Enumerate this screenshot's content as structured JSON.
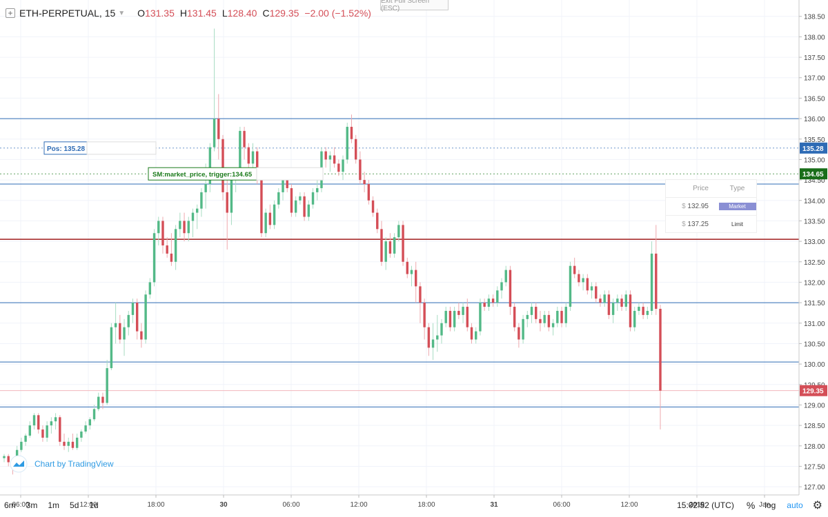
{
  "legend": {
    "symbol": "ETH-PERPETUAL, 15",
    "open_label": "O",
    "open": "131.35",
    "high_label": "H",
    "high": "131.45",
    "low_label": "L",
    "low": "128.40",
    "close_label": "C",
    "close": "129.35",
    "change": "−2.00 (−1.52%)"
  },
  "exit_fullscreen": "Exit Full Screen (ESC)",
  "position_label": "Pos: 135.28",
  "stop_label": "SM:market_price, trigger:134.65",
  "price_badges": {
    "pos": "135.28",
    "trigger": "134.65",
    "last": "129.35"
  },
  "orders": {
    "headers": [
      "Price",
      "Type"
    ],
    "rows": [
      {
        "currency": "$",
        "price": "132.95",
        "type": "Market"
      },
      {
        "currency": "$",
        "price": "137.25",
        "type": "Limit"
      }
    ]
  },
  "watermark": "Chart by TradingView",
  "time_ranges": [
    "6m",
    "3m",
    "1m",
    "5d",
    "1d"
  ],
  "status": {
    "time": "15:02:52 (UTC)",
    "percent": "%",
    "log": "log",
    "auto": "auto"
  },
  "colors": {
    "up": "#53b987",
    "down": "#d44e57",
    "hline_blue": "#2e6bb5",
    "hline_red": "#a01c1c",
    "accent": "#2196f3"
  },
  "chart_data": {
    "type": "candlestick",
    "symbol": "ETH-PERPETUAL",
    "interval": "15",
    "ylim": [
      126.8,
      138.9
    ],
    "y_ticks": [
      "127.00",
      "127.50",
      "128.00",
      "128.50",
      "129.00",
      "129.50",
      "130.00",
      "130.50",
      "131.00",
      "131.50",
      "132.00",
      "132.50",
      "133.00",
      "133.50",
      "134.00",
      "134.50",
      "135.00",
      "135.50",
      "136.00",
      "136.50",
      "137.00",
      "137.50",
      "138.00",
      "138.50"
    ],
    "x_ticks": [
      "06:00",
      "12:00",
      "18:00",
      "30",
      "06:00",
      "12:00",
      "18:00",
      "31",
      "06:00",
      "12:00",
      "2019",
      "Jan"
    ],
    "horizontal_lines": [
      {
        "price": 136.0,
        "color": "blue"
      },
      {
        "price": 134.4,
        "color": "blue"
      },
      {
        "price": 133.05,
        "color": "red"
      },
      {
        "price": 131.5,
        "color": "blue"
      },
      {
        "price": 130.05,
        "color": "blue"
      },
      {
        "price": 128.95,
        "color": "blue"
      }
    ],
    "position_price": 135.28,
    "trigger_price": 134.65,
    "last_price": 129.35,
    "candles": [
      [
        127.7,
        127.8,
        127.6,
        127.75
      ],
      [
        127.75,
        127.8,
        127.5,
        127.6
      ],
      [
        127.6,
        127.65,
        127.3,
        127.45
      ],
      [
        127.45,
        128.0,
        127.4,
        127.9
      ],
      [
        127.9,
        128.2,
        127.85,
        128.1
      ],
      [
        128.1,
        128.3,
        128.0,
        128.25
      ],
      [
        128.25,
        128.6,
        128.2,
        128.5
      ],
      [
        128.5,
        128.8,
        128.4,
        128.75
      ],
      [
        128.75,
        128.8,
        128.3,
        128.4
      ],
      [
        128.4,
        128.5,
        128.1,
        128.2
      ],
      [
        128.2,
        128.6,
        128.1,
        128.5
      ],
      [
        128.5,
        128.7,
        128.3,
        128.6
      ],
      [
        128.6,
        128.8,
        128.4,
        128.7
      ],
      [
        128.7,
        128.75,
        128.0,
        128.1
      ],
      [
        128.1,
        128.3,
        127.9,
        128.0
      ],
      [
        128.0,
        128.2,
        127.85,
        128.1
      ],
      [
        128.1,
        128.3,
        127.9,
        127.95
      ],
      [
        127.95,
        128.3,
        127.9,
        128.2
      ],
      [
        128.2,
        128.4,
        128.1,
        128.35
      ],
      [
        128.35,
        128.6,
        128.3,
        128.5
      ],
      [
        128.5,
        128.7,
        128.4,
        128.65
      ],
      [
        128.65,
        129.0,
        128.6,
        128.9
      ],
      [
        128.9,
        129.3,
        128.85,
        129.2
      ],
      [
        129.2,
        129.3,
        128.9,
        129.05
      ],
      [
        129.05,
        130.1,
        129.0,
        129.9
      ],
      [
        129.9,
        131.0,
        129.85,
        130.9
      ],
      [
        130.9,
        131.5,
        130.5,
        131.0
      ],
      [
        131.0,
        131.2,
        130.5,
        130.6
      ],
      [
        130.6,
        131.1,
        130.2,
        130.9
      ],
      [
        130.9,
        131.3,
        130.7,
        131.2
      ],
      [
        131.2,
        131.6,
        131.0,
        131.5
      ],
      [
        131.5,
        131.6,
        130.6,
        130.8
      ],
      [
        130.8,
        131.0,
        130.4,
        130.6
      ],
      [
        130.6,
        131.8,
        130.5,
        131.7
      ],
      [
        131.7,
        132.1,
        131.6,
        132.0
      ],
      [
        132.0,
        133.3,
        131.9,
        133.2
      ],
      [
        133.2,
        133.6,
        132.9,
        133.5
      ],
      [
        133.5,
        133.6,
        132.7,
        132.9
      ],
      [
        132.9,
        133.1,
        132.6,
        132.7
      ],
      [
        132.7,
        133.2,
        132.4,
        132.5
      ],
      [
        132.5,
        133.4,
        132.3,
        133.3
      ],
      [
        133.3,
        133.7,
        133.1,
        133.5
      ],
      [
        133.5,
        133.7,
        133.0,
        133.2
      ],
      [
        133.2,
        133.6,
        133.0,
        133.5
      ],
      [
        133.5,
        133.8,
        133.1,
        133.7
      ],
      [
        133.7,
        133.9,
        133.3,
        133.8
      ],
      [
        133.8,
        134.3,
        133.6,
        134.2
      ],
      [
        134.2,
        134.9,
        133.8,
        134.4
      ],
      [
        134.4,
        135.4,
        134.2,
        135.3
      ],
      [
        135.3,
        138.2,
        135.2,
        136.0
      ],
      [
        136.0,
        136.6,
        135.0,
        135.5
      ],
      [
        135.5,
        135.6,
        134.0,
        134.2
      ],
      [
        134.2,
        134.5,
        132.8,
        133.7
      ],
      [
        133.7,
        134.6,
        133.4,
        134.5
      ],
      [
        134.5,
        134.8,
        134.2,
        134.7
      ],
      [
        134.7,
        135.8,
        134.6,
        135.7
      ],
      [
        135.7,
        135.8,
        135.0,
        135.3
      ],
      [
        135.3,
        135.4,
        134.6,
        134.9
      ],
      [
        134.9,
        135.4,
        134.7,
        135.2
      ],
      [
        135.2,
        135.3,
        134.4,
        134.6
      ],
      [
        134.6,
        134.7,
        133.1,
        133.2
      ],
      [
        133.2,
        133.8,
        133.1,
        133.7
      ],
      [
        133.7,
        133.9,
        133.3,
        133.4
      ],
      [
        133.4,
        134.0,
        133.3,
        133.9
      ],
      [
        133.9,
        134.3,
        133.8,
        134.2
      ],
      [
        134.2,
        134.8,
        134.0,
        134.6
      ],
      [
        134.6,
        134.7,
        134.2,
        134.3
      ],
      [
        134.3,
        134.4,
        133.6,
        133.7
      ],
      [
        133.7,
        134.1,
        133.6,
        134.0
      ],
      [
        134.0,
        134.2,
        133.9,
        134.1
      ],
      [
        134.1,
        134.2,
        133.5,
        133.6
      ],
      [
        133.6,
        134.0,
        133.5,
        133.9
      ],
      [
        133.9,
        134.3,
        133.8,
        134.2
      ],
      [
        134.2,
        134.5,
        134.0,
        134.3
      ],
      [
        134.3,
        135.3,
        134.2,
        135.2
      ],
      [
        135.2,
        135.3,
        134.8,
        135.0
      ],
      [
        135.0,
        135.2,
        134.7,
        135.1
      ],
      [
        135.1,
        135.3,
        134.8,
        134.9
      ],
      [
        134.9,
        135.0,
        134.6,
        134.7
      ],
      [
        134.7,
        135.1,
        134.5,
        135.0
      ],
      [
        135.0,
        135.9,
        134.9,
        135.8
      ],
      [
        135.8,
        136.1,
        135.4,
        135.5
      ],
      [
        135.5,
        135.6,
        134.9,
        135.0
      ],
      [
        135.0,
        135.2,
        134.4,
        134.5
      ],
      [
        134.5,
        134.7,
        134.2,
        134.4
      ],
      [
        134.4,
        134.5,
        133.9,
        134.0
      ],
      [
        134.0,
        134.1,
        133.6,
        133.7
      ],
      [
        133.7,
        133.8,
        133.2,
        133.3
      ],
      [
        133.3,
        133.5,
        132.4,
        132.5
      ],
      [
        132.5,
        133.1,
        132.3,
        133.0
      ],
      [
        133.0,
        133.2,
        132.6,
        132.7
      ],
      [
        132.7,
        133.2,
        132.6,
        133.1
      ],
      [
        133.1,
        133.5,
        133.0,
        133.4
      ],
      [
        133.4,
        133.5,
        132.4,
        132.5
      ],
      [
        132.5,
        132.6,
        132.1,
        132.2
      ],
      [
        132.2,
        132.4,
        131.9,
        132.3
      ],
      [
        132.3,
        132.5,
        131.5,
        131.9
      ],
      [
        131.9,
        132.0,
        131.0,
        131.5
      ],
      [
        131.5,
        131.6,
        130.6,
        130.9
      ],
      [
        130.9,
        131.0,
        130.2,
        130.4
      ],
      [
        130.4,
        131.0,
        130.1,
        130.6
      ],
      [
        130.6,
        131.2,
        130.3,
        130.7
      ],
      [
        130.7,
        131.1,
        130.5,
        131.0
      ],
      [
        131.0,
        131.4,
        130.9,
        131.3
      ],
      [
        131.3,
        131.4,
        130.8,
        130.9
      ],
      [
        130.9,
        131.4,
        130.8,
        131.3
      ],
      [
        131.3,
        131.5,
        131.1,
        131.2
      ],
      [
        131.2,
        131.5,
        131.0,
        131.4
      ],
      [
        131.4,
        131.6,
        130.8,
        130.9
      ],
      [
        130.9,
        131.0,
        130.5,
        130.6
      ],
      [
        130.6,
        130.9,
        130.5,
        130.8
      ],
      [
        130.8,
        131.6,
        130.7,
        131.5
      ],
      [
        131.5,
        131.6,
        131.3,
        131.4
      ],
      [
        131.4,
        131.7,
        131.3,
        131.6
      ],
      [
        131.6,
        131.7,
        131.4,
        131.5
      ],
      [
        131.5,
        131.9,
        131.4,
        131.8
      ],
      [
        131.8,
        132.1,
        131.6,
        132.0
      ],
      [
        132.0,
        132.4,
        131.9,
        132.3
      ],
      [
        132.3,
        132.4,
        131.2,
        131.4
      ],
      [
        131.4,
        131.5,
        130.8,
        130.9
      ],
      [
        130.9,
        131.0,
        130.4,
        130.6
      ],
      [
        130.6,
        131.2,
        130.5,
        131.1
      ],
      [
        131.1,
        131.3,
        130.9,
        131.2
      ],
      [
        131.2,
        131.5,
        131.0,
        131.4
      ],
      [
        131.4,
        131.5,
        131.0,
        131.1
      ],
      [
        131.1,
        131.3,
        130.8,
        131.0
      ],
      [
        131.0,
        131.3,
        130.9,
        131.2
      ],
      [
        131.2,
        131.3,
        130.8,
        130.9
      ],
      [
        130.9,
        131.1,
        130.7,
        131.0
      ],
      [
        131.0,
        131.4,
        130.9,
        131.3
      ],
      [
        131.3,
        131.4,
        130.9,
        131.0
      ],
      [
        131.0,
        131.5,
        130.9,
        131.4
      ],
      [
        131.4,
        132.5,
        131.3,
        132.4
      ],
      [
        132.4,
        132.6,
        132.1,
        132.2
      ],
      [
        132.2,
        132.3,
        131.9,
        132.0
      ],
      [
        132.0,
        132.2,
        131.8,
        132.1
      ],
      [
        132.1,
        132.2,
        131.7,
        131.8
      ],
      [
        131.8,
        132.0,
        131.6,
        131.9
      ],
      [
        131.9,
        132.0,
        131.5,
        131.6
      ],
      [
        131.6,
        131.7,
        131.4,
        131.5
      ],
      [
        131.5,
        131.8,
        131.4,
        131.7
      ],
      [
        131.7,
        131.8,
        131.1,
        131.2
      ],
      [
        131.2,
        131.6,
        131.0,
        131.5
      ],
      [
        131.5,
        131.7,
        131.3,
        131.6
      ],
      [
        131.6,
        131.7,
        131.3,
        131.4
      ],
      [
        131.4,
        131.8,
        131.3,
        131.7
      ],
      [
        131.7,
        131.8,
        130.8,
        130.9
      ],
      [
        130.9,
        131.4,
        130.8,
        131.3
      ],
      [
        131.3,
        131.5,
        131.2,
        131.4
      ],
      [
        131.4,
        131.5,
        131.1,
        131.2
      ],
      [
        131.2,
        131.4,
        131.1,
        131.3
      ],
      [
        131.3,
        133.0,
        131.2,
        132.7
      ],
      [
        132.7,
        133.4,
        131.2,
        131.35
      ],
      [
        131.35,
        131.45,
        128.4,
        129.35
      ]
    ]
  }
}
